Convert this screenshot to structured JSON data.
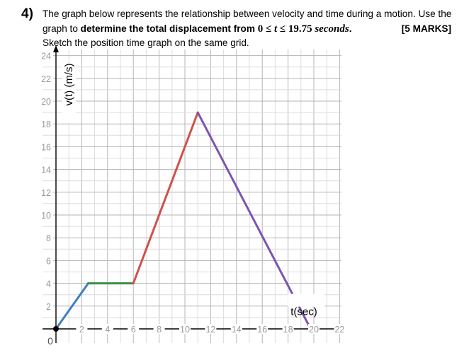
{
  "question": {
    "number": "4)",
    "line1": "The graph below represents the relationship between velocity and time during a motion. Use the",
    "line2_prefix": "graph to ",
    "line2_bold": "determine the total displacement from ",
    "line2_math_zero": "0 ≤ ",
    "line2_math_t1": "t",
    "line2_math_mid": " ≤ 19.75 ",
    "line2_math_unit": "seconds",
    "line2_end": ".",
    "marks": "[5 MARKS]",
    "line3": "Sketch the position time graph on the same grid."
  },
  "chart_data": {
    "type": "line",
    "xlabel": "t(sec)",
    "ylabel": "v(t) (m/s)",
    "xlim": [
      0,
      22
    ],
    "ylim": [
      0,
      24
    ],
    "x_ticks": [
      "2",
      "4",
      "6",
      "8",
      "10",
      "12",
      "14",
      "16",
      "18",
      "20",
      "22"
    ],
    "y_ticks": [
      "2",
      "4",
      "6",
      "8",
      "10",
      "12",
      "14",
      "16",
      "18",
      "20",
      "22",
      "24"
    ],
    "origin_label": "0",
    "grid": true,
    "segments": [
      {
        "color": "#3f7fc1",
        "points": [
          [
            0,
            0
          ],
          [
            2.5,
            4
          ]
        ]
      },
      {
        "color": "#3a8f47",
        "points": [
          [
            2.5,
            4
          ],
          [
            6,
            4
          ]
        ]
      },
      {
        "color": "#d0504b",
        "points": [
          [
            6,
            4
          ],
          [
            11,
            19
          ]
        ]
      },
      {
        "color": "#7d54b0",
        "points": [
          [
            11,
            19
          ],
          [
            19.75,
            0
          ]
        ]
      }
    ]
  }
}
